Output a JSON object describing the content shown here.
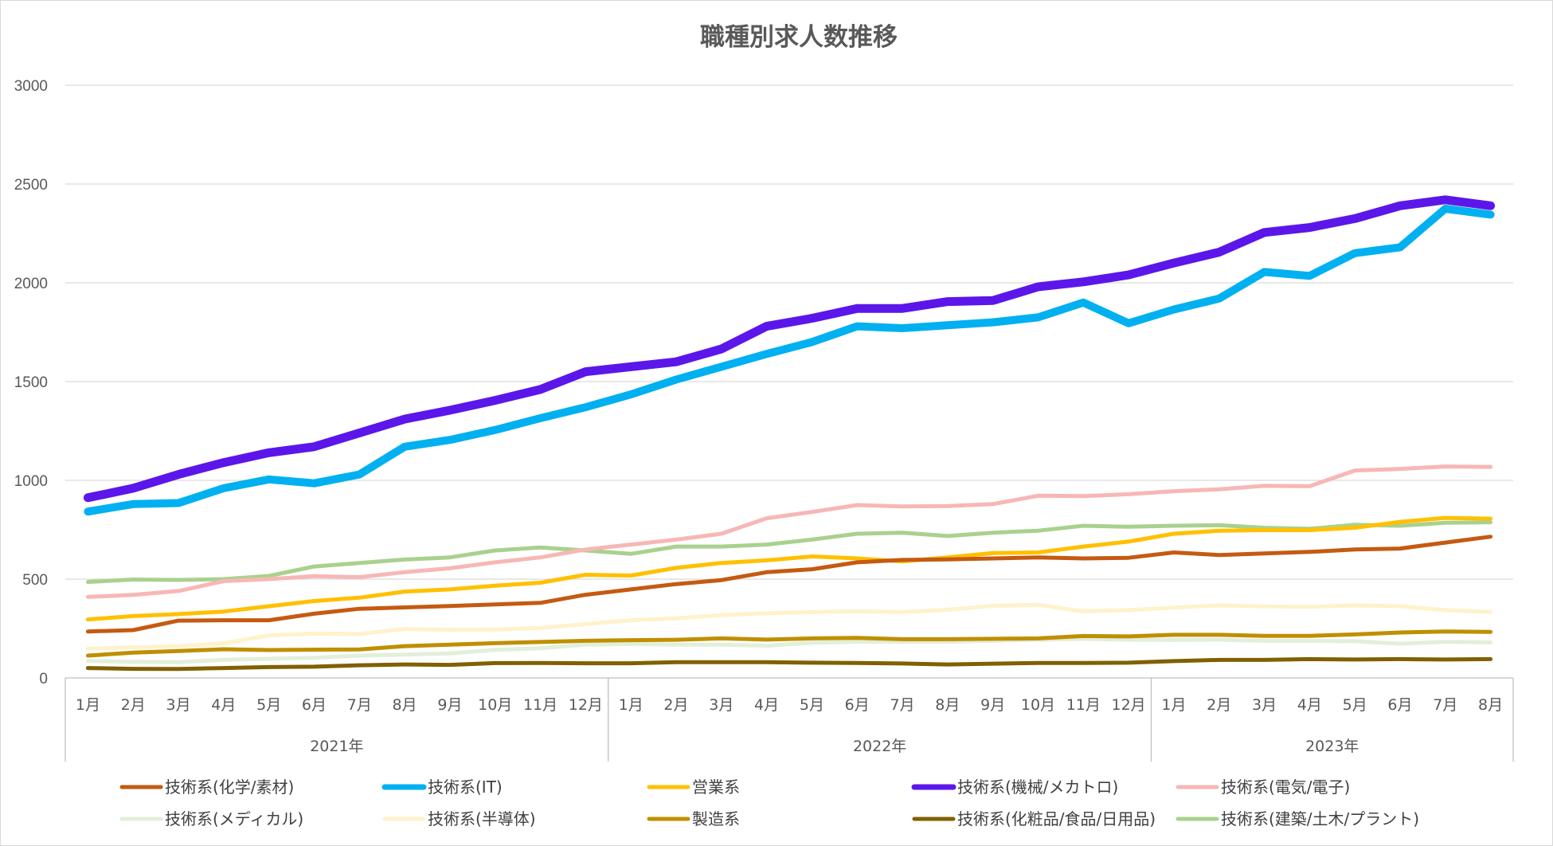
{
  "chart_data": {
    "type": "line",
    "title": "職種別求人数推移",
    "xlabel": "",
    "ylabel": "",
    "ylim": [
      0,
      3000
    ],
    "yticks": [
      "0",
      "500",
      "1000",
      "1500",
      "2000",
      "2500",
      "3000"
    ],
    "grid": true,
    "legend_position": "bottom",
    "categories": [
      "1月",
      "2月",
      "3月",
      "4月",
      "5月",
      "6月",
      "7月",
      "8月",
      "9月",
      "10月",
      "11月",
      "12月",
      "1月",
      "2月",
      "3月",
      "4月",
      "5月",
      "6月",
      "7月",
      "8月",
      "9月",
      "10月",
      "11月",
      "12月",
      "1月",
      "2月",
      "3月",
      "4月",
      "5月",
      "6月",
      "7月",
      "8月"
    ],
    "year_groups": [
      {
        "label": "2021年",
        "count": 12
      },
      {
        "label": "2022年",
        "count": 12
      },
      {
        "label": "2023年",
        "count": 8
      }
    ],
    "series": [
      {
        "name": "技術系(化学/素材)",
        "color": "#c55a11",
        "width": 5,
        "values": [
          235,
          242,
          290,
          292,
          292,
          325,
          350,
          357,
          364,
          372,
          380,
          421,
          448,
          475,
          495,
          535,
          550,
          585,
          597,
          600,
          605,
          610,
          605,
          608,
          635,
          622,
          630,
          638,
          650,
          655,
          685,
          715
        ]
      },
      {
        "name": "技術系(IT)",
        "color": "#00b0f0",
        "width": 10,
        "values": [
          842,
          880,
          885,
          960,
          1005,
          985,
          1030,
          1170,
          1205,
          1255,
          1315,
          1370,
          1435,
          1510,
          1575,
          1640,
          1700,
          1780,
          1770,
          1785,
          1800,
          1825,
          1900,
          1795,
          1865,
          1920,
          2055,
          2035,
          2150,
          2180,
          2375,
          2345
        ]
      },
      {
        "name": "営業系",
        "color": "#ffc000",
        "width": 5,
        "values": [
          296,
          313,
          323,
          336,
          363,
          389,
          406,
          437,
          448,
          467,
          482,
          522,
          518,
          557,
          582,
          595,
          615,
          605,
          590,
          610,
          632,
          635,
          665,
          690,
          730,
          745,
          748,
          748,
          760,
          790,
          810,
          806
        ]
      },
      {
        "name": "技術系(機械/メカトロ)",
        "color": "#5b17ea",
        "width": 11,
        "values": [
          912,
          960,
          1030,
          1090,
          1140,
          1170,
          1240,
          1310,
          1355,
          1405,
          1460,
          1550,
          1575,
          1600,
          1665,
          1780,
          1820,
          1870,
          1870,
          1905,
          1910,
          1980,
          2005,
          2040,
          2100,
          2155,
          2255,
          2280,
          2325,
          2390,
          2420,
          2390
        ]
      },
      {
        "name": "技術系(電気/電子)",
        "color": "#f7b7b6",
        "width": 5,
        "values": [
          410,
          420,
          440,
          490,
          500,
          515,
          510,
          535,
          555,
          585,
          610,
          650,
          675,
          700,
          730,
          808,
          840,
          875,
          868,
          870,
          880,
          922,
          920,
          930,
          945,
          955,
          972,
          970,
          1050,
          1058,
          1070,
          1068
        ]
      },
      {
        "name": "技術系(メディカル)",
        "color": "#e2efda",
        "width": 5,
        "values": [
          86,
          82,
          80,
          92,
          97,
          102,
          113,
          118,
          124,
          142,
          150,
          168,
          172,
          168,
          168,
          163,
          178,
          183,
          183,
          183,
          188,
          193,
          198,
          193,
          192,
          193,
          188,
          187,
          186,
          173,
          183,
          180
        ]
      },
      {
        "name": "技術系(半導体)",
        "color": "#fff2cc",
        "width": 5,
        "values": [
          148,
          155,
          160,
          175,
          215,
          225,
          222,
          248,
          243,
          245,
          253,
          272,
          292,
          302,
          318,
          328,
          333,
          337,
          333,
          345,
          365,
          370,
          337,
          343,
          356,
          367,
          362,
          360,
          367,
          363,
          343,
          333
        ]
      },
      {
        "name": "製造系",
        "color": "#bf8f00",
        "width": 5,
        "values": [
          113,
          128,
          136,
          145,
          141,
          143,
          144,
          161,
          168,
          176,
          182,
          188,
          191,
          193,
          200,
          194,
          200,
          203,
          196,
          196,
          198,
          200,
          212,
          210,
          218,
          218,
          213,
          213,
          220,
          230,
          235,
          233
        ]
      },
      {
        "name": "技術系(化粧品/食品/日用品)",
        "color": "#806000",
        "width": 5,
        "values": [
          50,
          46,
          45,
          50,
          55,
          57,
          64,
          68,
          66,
          75,
          76,
          74,
          74,
          80,
          80,
          80,
          77,
          76,
          73,
          68,
          72,
          76,
          76,
          77,
          85,
          91,
          91,
          95,
          93,
          95,
          93,
          95
        ]
      },
      {
        "name": "技術系(建築/土木/プラント)",
        "color": "#a9d18e",
        "width": 5,
        "values": [
          486,
          498,
          496,
          500,
          516,
          564,
          582,
          599,
          610,
          645,
          660,
          645,
          628,
          665,
          665,
          675,
          700,
          730,
          735,
          718,
          735,
          745,
          770,
          765,
          770,
          773,
          760,
          755,
          775,
          770,
          785,
          788
        ]
      }
    ]
  }
}
